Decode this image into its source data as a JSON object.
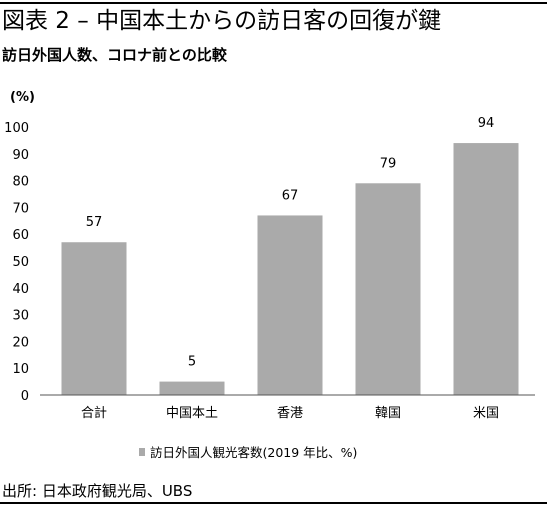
{
  "title": "図表 2 – 中国本土からの訪日客の回復が鍵",
  "subtitle": "訪日外国人数、コロナ前との比較",
  "source": "出所: 日本政府観光局、UBS",
  "chart_data": {
    "type": "bar",
    "unit_label": "(%)",
    "categories": [
      "合計",
      "中国本土",
      "香港",
      "韓国",
      "米国"
    ],
    "series": [
      {
        "name": "訪日外国人観光客数(2019 年比、%)",
        "values": [
          57,
          5,
          67,
          79,
          94
        ],
        "color": "#aaaaaa"
      }
    ],
    "data_labels": [
      "57",
      "5",
      "67",
      "79",
      "94"
    ],
    "ylim": [
      0,
      100
    ],
    "yticks": [
      0,
      10,
      20,
      30,
      40,
      50,
      60,
      70,
      80,
      90,
      100
    ],
    "grid": false,
    "legend": "bottom-center"
  }
}
